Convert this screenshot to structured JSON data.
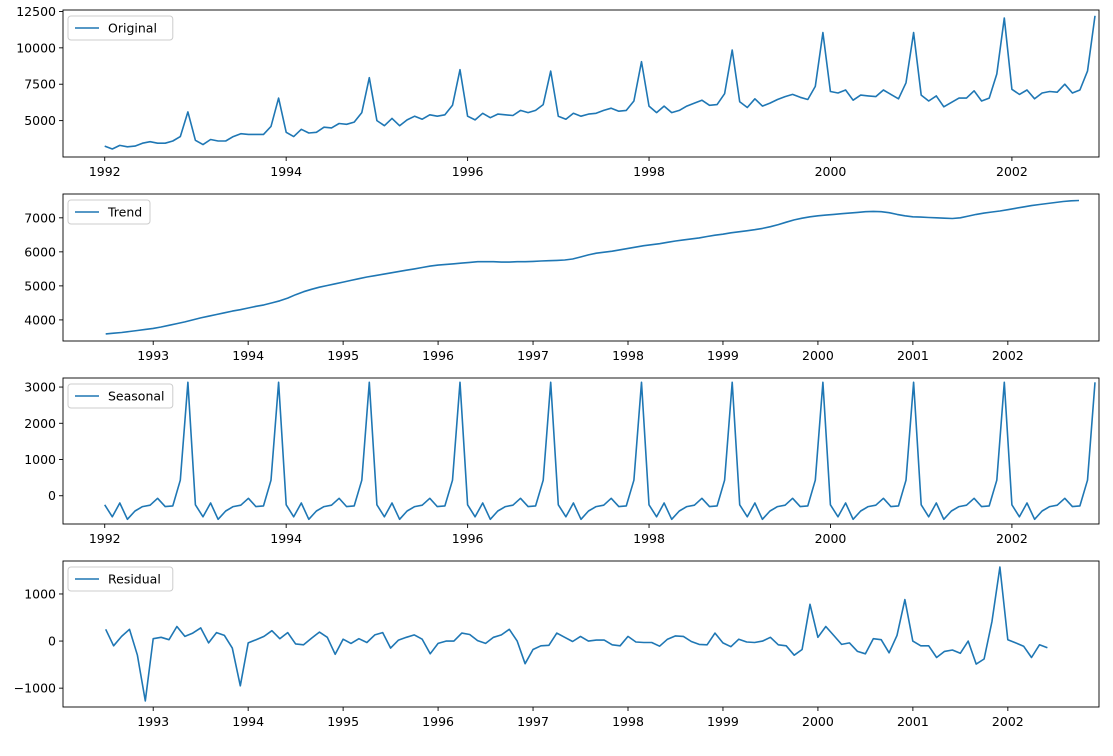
{
  "chart_data": [
    {
      "type": "line",
      "title": "",
      "xlabel": "",
      "ylabel": "",
      "legend": "top-left",
      "series": [
        {
          "name": "Original",
          "color": "#1f77b4"
        }
      ],
      "x_start": 1992.0,
      "x_step": 0.08333,
      "xlim": [
        1991.54,
        2002.96
      ],
      "ylim": [
        2500,
        12600
      ],
      "xticks": [
        1992,
        1994,
        1996,
        1998,
        2000,
        2002
      ],
      "yticks": [
        5000,
        7500,
        10000,
        12500
      ],
      "values": [
        3250,
        3050,
        3300,
        3200,
        3250,
        3450,
        3550,
        3450,
        3450,
        3600,
        3900,
        5600,
        3650,
        3350,
        3700,
        3600,
        3600,
        3900,
        4100,
        4050,
        4050,
        4050,
        4600,
        6550,
        4200,
        3900,
        4400,
        4150,
        4200,
        4550,
        4500,
        4800,
        4750,
        4900,
        5550,
        7950,
        5000,
        4650,
        5150,
        4650,
        5050,
        5300,
        5100,
        5400,
        5300,
        5400,
        6050,
        8500,
        5300,
        5050,
        5500,
        5200,
        5450,
        5400,
        5350,
        5700,
        5550,
        5700,
        6100,
        8400,
        5300,
        5100,
        5500,
        5300,
        5450,
        5500,
        5700,
        5850,
        5650,
        5700,
        6350,
        9050,
        6000,
        5550,
        6000,
        5550,
        5700,
        6000,
        6200,
        6400,
        6050,
        6100,
        6850,
        9850,
        6300,
        5900,
        6500,
        6000,
        6200,
        6450,
        6650,
        6800,
        6600,
        6450,
        7350,
        11050,
        7000,
        6900,
        7100,
        6400,
        6750,
        6700,
        6650,
        7100,
        6800,
        6500,
        7600,
        11050,
        6750,
        6350,
        6700,
        5950,
        6250,
        6550,
        6550,
        7050,
        6350,
        6550,
        8200,
        12050,
        7150,
        6800,
        7100,
        6500,
        6900,
        7000,
        6950,
        7500,
        6900,
        7100,
        8400,
        12200
      ]
    },
    {
      "type": "line",
      "title": "",
      "xlabel": "",
      "ylabel": "",
      "legend": "top-left",
      "series": [
        {
          "name": "Trend",
          "color": "#1f77b4"
        }
      ],
      "x_start": 1992.5,
      "x_step": 0.08333,
      "xlim": [
        1992.05,
        2002.96
      ],
      "ylim": [
        3380,
        7700
      ],
      "xticks": [
        1993,
        1994,
        1995,
        1996,
        1997,
        1998,
        1999,
        2000,
        2001,
        2002
      ],
      "yticks": [
        4000,
        5000,
        6000,
        7000
      ],
      "values": [
        3590,
        3610,
        3630,
        3660,
        3690,
        3720,
        3750,
        3790,
        3840,
        3890,
        3940,
        4000,
        4060,
        4110,
        4160,
        4210,
        4260,
        4300,
        4350,
        4400,
        4440,
        4500,
        4560,
        4640,
        4740,
        4830,
        4900,
        4960,
        5010,
        5060,
        5110,
        5160,
        5210,
        5260,
        5300,
        5340,
        5380,
        5420,
        5460,
        5500,
        5540,
        5580,
        5610,
        5630,
        5650,
        5670,
        5690,
        5710,
        5710,
        5710,
        5700,
        5700,
        5710,
        5710,
        5720,
        5730,
        5740,
        5750,
        5760,
        5790,
        5850,
        5910,
        5960,
        5990,
        6020,
        6060,
        6100,
        6140,
        6180,
        6210,
        6240,
        6280,
        6320,
        6350,
        6380,
        6410,
        6450,
        6490,
        6520,
        6560,
        6590,
        6620,
        6650,
        6690,
        6740,
        6800,
        6870,
        6940,
        6990,
        7030,
        7060,
        7080,
        7100,
        7120,
        7140,
        7160,
        7180,
        7190,
        7180,
        7150,
        7100,
        7060,
        7030,
        7020,
        7010,
        7000,
        6990,
        6980,
        7000,
        7050,
        7100,
        7140,
        7170,
        7200,
        7240,
        7280,
        7320,
        7360,
        7390,
        7420,
        7450,
        7480,
        7500,
        7510
      ]
    },
    {
      "type": "line",
      "title": "",
      "xlabel": "",
      "ylabel": "",
      "legend": "top-left",
      "series": [
        {
          "name": "Seasonal",
          "color": "#1f77b4"
        }
      ],
      "x_start": 1992.0,
      "x_step": 0.08333,
      "xlim": [
        1991.54,
        2002.96
      ],
      "ylim": [
        -780,
        3250
      ],
      "xticks": [
        1992,
        1994,
        1996,
        1998,
        2000,
        2002
      ],
      "yticks": [
        0,
        1000,
        2000,
        3000
      ],
      "values": [
        -250,
        -580,
        -200,
        -650,
        -420,
        -300,
        -260,
        -70,
        -300,
        -280,
        430,
        3130,
        -250,
        -580,
        -200,
        -650,
        -420,
        -300,
        -260,
        -70,
        -300,
        -280,
        430,
        3130,
        -250,
        -580,
        -200,
        -650,
        -420,
        -300,
        -260,
        -70,
        -300,
        -280,
        430,
        3130,
        -250,
        -580,
        -200,
        -650,
        -420,
        -300,
        -260,
        -70,
        -300,
        -280,
        430,
        3130,
        -250,
        -580,
        -200,
        -650,
        -420,
        -300,
        -260,
        -70,
        -300,
        -280,
        430,
        3130,
        -250,
        -580,
        -200,
        -650,
        -420,
        -300,
        -260,
        -70,
        -300,
        -280,
        430,
        3130,
        -250,
        -580,
        -200,
        -650,
        -420,
        -300,
        -260,
        -70,
        -300,
        -280,
        430,
        3130,
        -250,
        -580,
        -200,
        -650,
        -420,
        -300,
        -260,
        -70,
        -300,
        -280,
        430,
        3130,
        -250,
        -580,
        -200,
        -650,
        -420,
        -300,
        -260,
        -70,
        -300,
        -280,
        430,
        3130,
        -250,
        -580,
        -200,
        -650,
        -420,
        -300,
        -260,
        -70,
        -300,
        -280,
        430,
        3130,
        -250,
        -580,
        -200,
        -650,
        -420,
        -300,
        -260,
        -70,
        -300,
        -280,
        430,
        3130
      ]
    },
    {
      "type": "line",
      "title": "",
      "xlabel": "",
      "ylabel": "",
      "legend": "top-left",
      "series": [
        {
          "name": "Residual",
          "color": "#1f77b4"
        }
      ],
      "x_start": 1992.5,
      "x_step": 0.08333,
      "xlim": [
        1992.05,
        2002.96
      ],
      "ylim": [
        -1400,
        1700
      ],
      "xticks": [
        1993,
        1994,
        1995,
        1996,
        1997,
        1998,
        1999,
        2000,
        2001,
        2002
      ],
      "yticks": [
        -1000,
        0,
        1000
      ],
      "values": [
        250,
        -100,
        100,
        250,
        -300,
        -1270,
        50,
        80,
        30,
        310,
        100,
        170,
        280,
        -40,
        180,
        120,
        -150,
        -950,
        -40,
        30,
        100,
        220,
        50,
        180,
        -60,
        -80,
        60,
        190,
        80,
        -280,
        40,
        -50,
        50,
        -30,
        130,
        180,
        -150,
        20,
        80,
        130,
        40,
        -270,
        -50,
        0,
        0,
        170,
        140,
        10,
        -50,
        80,
        130,
        250,
        0,
        -480,
        -180,
        -100,
        -90,
        170,
        80,
        -10,
        100,
        0,
        20,
        20,
        -80,
        -100,
        100,
        -20,
        -30,
        -30,
        -110,
        40,
        110,
        100,
        -10,
        -70,
        -80,
        170,
        -40,
        -120,
        40,
        -20,
        -30,
        0,
        80,
        -80,
        -100,
        -300,
        -180,
        780,
        80,
        310,
        120,
        -70,
        -40,
        -220,
        -270,
        50,
        30,
        -250,
        120,
        880,
        0,
        -100,
        -100,
        -350,
        -220,
        -190,
        -260,
        0,
        -490,
        -380,
        420,
        1570,
        30,
        -40,
        -110,
        -350,
        -80,
        -140
      ]
    }
  ]
}
